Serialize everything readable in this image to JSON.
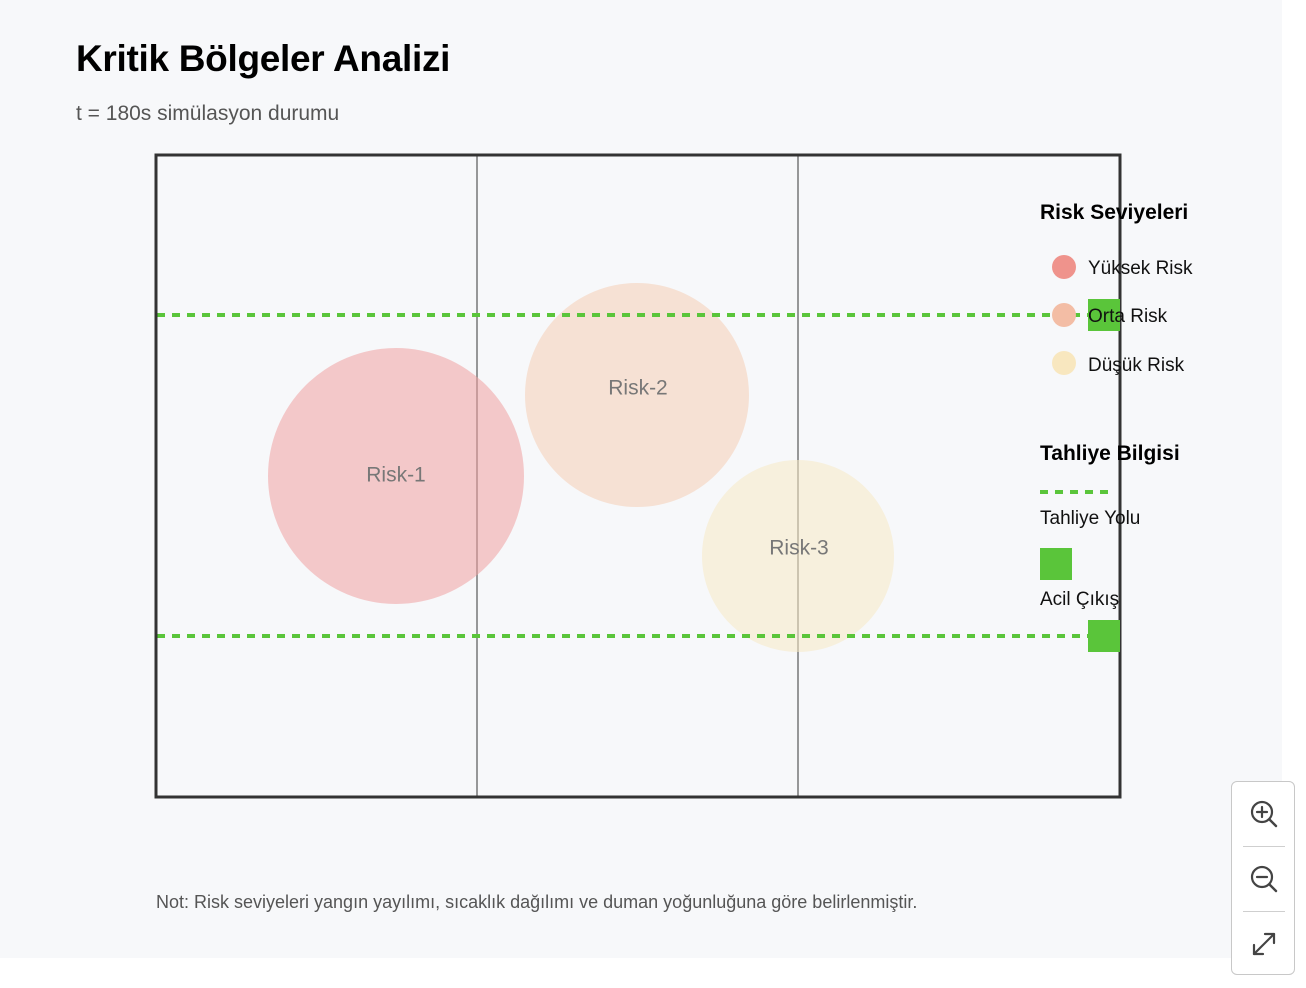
{
  "header": {
    "title": "Kritik Bölgeler Analizi",
    "subtitle": "t = 180s simülasyon durumu"
  },
  "zones": [
    {
      "label": "Risk-1",
      "level": "high",
      "color": "#f0a0a0"
    },
    {
      "label": "Risk-2",
      "level": "medium",
      "color": "#f5cdb4"
    },
    {
      "label": "Risk-3",
      "level": "low",
      "color": "#f7e9c4"
    }
  ],
  "legend": {
    "risk_title": "Risk Seviyeleri",
    "risk_items": [
      {
        "label": "Yüksek Risk",
        "color": "#ef938c"
      },
      {
        "label": "Orta Risk",
        "color": "#f3bda5"
      },
      {
        "label": "Düşük Risk",
        "color": "#f8e7bf"
      }
    ],
    "evac_title": "Tahliye Bilgisi",
    "evac_path_label": "Tahliye Yolu",
    "exit_label": "Acil Çıkış",
    "evac_color": "#5ac53a"
  },
  "note": "Not: Risk seviyeleri yangın yayılımı, sıcaklık dağılımı ve duman yoğunluğuna göre belirlenmiştir.",
  "controls": {
    "zoom_in_icon": "zoom-in-icon",
    "zoom_out_icon": "zoom-out-icon",
    "fit_icon": "expand-icon"
  }
}
